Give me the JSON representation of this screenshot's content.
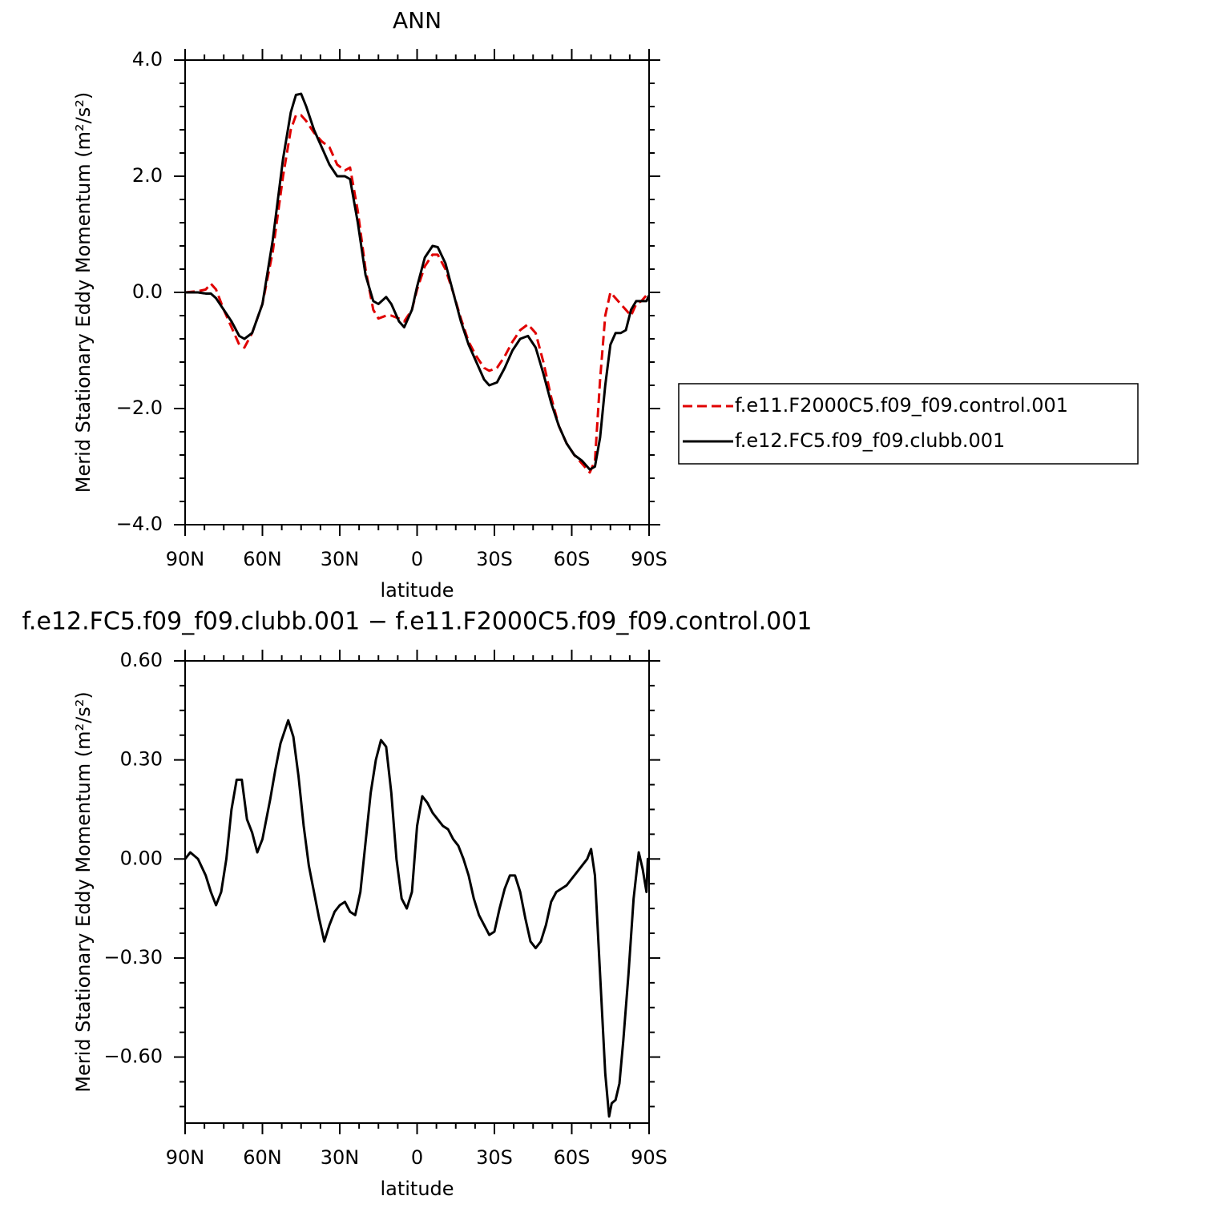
{
  "chart_data": [
    {
      "type": "line",
      "title": "ANN",
      "x_label": "latitude",
      "y_label": "Merid Stationary Eddy Momentum (m²/s²)",
      "xlim": [
        90,
        -90
      ],
      "ylim": [
        -4,
        4
      ],
      "xticks": [
        {
          "value": 90,
          "label": "90N"
        },
        {
          "value": 60,
          "label": "60N"
        },
        {
          "value": 30,
          "label": "30N"
        },
        0,
        {
          "value": -30,
          "label": "30S"
        },
        {
          "value": -60,
          "label": "60S"
        },
        {
          "value": -90,
          "label": "90S"
        }
      ],
      "yticks": [
        {
          "value": -4,
          "label": "−4.0"
        },
        {
          "value": -2,
          "label": "−2.0"
        },
        {
          "value": 0,
          "label": "0.0"
        },
        {
          "value": 2,
          "label": "2.0"
        },
        {
          "value": 4,
          "label": "4.0"
        }
      ],
      "legend": "right",
      "x": [
        90,
        85,
        82,
        80,
        78,
        75,
        72,
        69,
        67,
        64,
        60,
        56,
        52,
        49,
        47,
        45,
        43,
        40,
        37,
        34,
        31,
        28,
        26,
        23,
        20,
        17,
        15,
        12,
        10,
        7,
        5,
        2,
        0,
        -3,
        -6,
        -8,
        -11,
        -14,
        -17,
        -20,
        -23,
        -26,
        -28,
        -31,
        -34,
        -37,
        -40,
        -43,
        -46,
        -49,
        -52,
        -55,
        -58,
        -61,
        -64,
        -67,
        -69,
        -71,
        -73,
        -75,
        -77,
        -79,
        -81,
        -83,
        -85,
        -87,
        -89,
        -90
      ],
      "series": [
        {
          "name": "f.e11.F2000C5.f09_f09.control.001",
          "color": "#e00000",
          "linestyle": "dashed",
          "values": [
            0,
            0.02,
            0.05,
            0.15,
            0.05,
            -0.3,
            -0.6,
            -0.9,
            -0.95,
            -0.7,
            -0.2,
            0.7,
            2.0,
            2.8,
            3.05,
            3.05,
            2.95,
            2.75,
            2.6,
            2.5,
            2.2,
            2.1,
            2.15,
            1.4,
            0.4,
            -0.3,
            -0.45,
            -0.4,
            -0.4,
            -0.45,
            -0.5,
            -0.3,
            0.05,
            0.45,
            0.65,
            0.65,
            0.4,
            0.0,
            -0.45,
            -0.85,
            -1.1,
            -1.3,
            -1.35,
            -1.3,
            -1.1,
            -0.85,
            -0.65,
            -0.55,
            -0.7,
            -1.2,
            -1.8,
            -2.3,
            -2.6,
            -2.8,
            -2.95,
            -3.1,
            -2.9,
            -1.5,
            -0.4,
            0.0,
            -0.1,
            -0.2,
            -0.3,
            -0.4,
            -0.2,
            -0.15,
            -0.05,
            0.0
          ]
        },
        {
          "name": "f.e12.FC5.f09_f09.clubb.001",
          "color": "#000000",
          "linestyle": "solid",
          "values": [
            0,
            0,
            -0.02,
            -0.02,
            -0.1,
            -0.3,
            -0.5,
            -0.75,
            -0.8,
            -0.7,
            -0.2,
            0.9,
            2.3,
            3.1,
            3.4,
            3.42,
            3.2,
            2.8,
            2.5,
            2.2,
            2.0,
            2.0,
            1.95,
            1.2,
            0.3,
            -0.15,
            -0.2,
            -0.08,
            -0.2,
            -0.5,
            -0.6,
            -0.3,
            0.1,
            0.6,
            0.8,
            0.78,
            0.5,
            0.0,
            -0.5,
            -0.9,
            -1.2,
            -1.5,
            -1.6,
            -1.55,
            -1.3,
            -1.0,
            -0.8,
            -0.75,
            -0.95,
            -1.4,
            -1.9,
            -2.3,
            -2.6,
            -2.8,
            -2.9,
            -3.05,
            -3.0,
            -2.5,
            -1.6,
            -0.9,
            -0.7,
            -0.7,
            -0.65,
            -0.3,
            -0.15,
            -0.15,
            -0.15,
            -0.05
          ]
        }
      ]
    },
    {
      "type": "line",
      "title": "f.e12.FC5.f09_f09.clubb.001 − f.e11.F2000C5.f09_f09.control.001",
      "x_label": "latitude",
      "y_label": "Merid Stationary Eddy Momentum (m²/s²)",
      "xlim": [
        90,
        -90
      ],
      "ylim": [
        -0.8,
        0.6
      ],
      "xticks": [
        {
          "value": 90,
          "label": "90N"
        },
        {
          "value": 60,
          "label": "60N"
        },
        {
          "value": 30,
          "label": "30N"
        },
        0,
        {
          "value": -30,
          "label": "30S"
        },
        {
          "value": -60,
          "label": "60S"
        },
        {
          "value": -90,
          "label": "90S"
        }
      ],
      "yticks": [
        {
          "value": -0.6,
          "label": "−0.60"
        },
        {
          "value": -0.3,
          "label": "−0.30"
        },
        {
          "value": 0,
          "label": "0.00"
        },
        {
          "value": 0.3,
          "label": "0.30"
        },
        {
          "value": 0.6,
          "label": "0.60"
        }
      ],
      "x": [
        90,
        88,
        85,
        82,
        80,
        78,
        76,
        74,
        72,
        70,
        68,
        66,
        64,
        62,
        60,
        57,
        55,
        53,
        50,
        48,
        46,
        44,
        42,
        40,
        38,
        36,
        34,
        32,
        30,
        28,
        26,
        24,
        22,
        20,
        18,
        16,
        14,
        12,
        10,
        8,
        6,
        4,
        2,
        0,
        -2,
        -4,
        -6,
        -8,
        -10,
        -12,
        -14,
        -16,
        -18,
        -20,
        -22,
        -24,
        -26,
        -28,
        -30,
        -32,
        -34,
        -36,
        -38,
        -40,
        -42,
        -44,
        -46,
        -48,
        -50,
        -52,
        -54,
        -56,
        -58,
        -60,
        -62,
        -64,
        -66,
        -67.5,
        -69,
        -71,
        -73,
        -74.5,
        -75.5,
        -77,
        -78.5,
        -80,
        -82,
        -84,
        -86,
        -87.5,
        -89,
        -89.5,
        -90
      ],
      "series": [
        {
          "color": "#000000",
          "linestyle": "solid",
          "values": [
            0.0,
            0.02,
            0.0,
            -0.05,
            -0.1,
            -0.14,
            -0.1,
            0.0,
            0.15,
            0.24,
            0.24,
            0.12,
            0.08,
            0.02,
            0.06,
            0.18,
            0.27,
            0.35,
            0.42,
            0.37,
            0.25,
            0.1,
            -0.02,
            -0.1,
            -0.18,
            -0.25,
            -0.2,
            -0.16,
            -0.14,
            -0.13,
            -0.16,
            -0.17,
            -0.1,
            0.05,
            0.2,
            0.3,
            0.36,
            0.34,
            0.2,
            0.0,
            -0.12,
            -0.15,
            -0.1,
            0.1,
            0.19,
            0.17,
            0.14,
            0.12,
            0.1,
            0.09,
            0.06,
            0.04,
            0.0,
            -0.05,
            -0.12,
            -0.17,
            -0.2,
            -0.23,
            -0.22,
            -0.15,
            -0.09,
            -0.05,
            -0.05,
            -0.1,
            -0.18,
            -0.25,
            -0.27,
            -0.25,
            -0.2,
            -0.13,
            -0.1,
            -0.09,
            -0.08,
            -0.06,
            -0.04,
            -0.02,
            0.0,
            0.03,
            -0.05,
            -0.35,
            -0.65,
            -0.78,
            -0.74,
            -0.73,
            -0.68,
            -0.55,
            -0.35,
            -0.12,
            0.02,
            -0.03,
            -0.1,
            0.0,
            0.0
          ]
        }
      ]
    }
  ]
}
